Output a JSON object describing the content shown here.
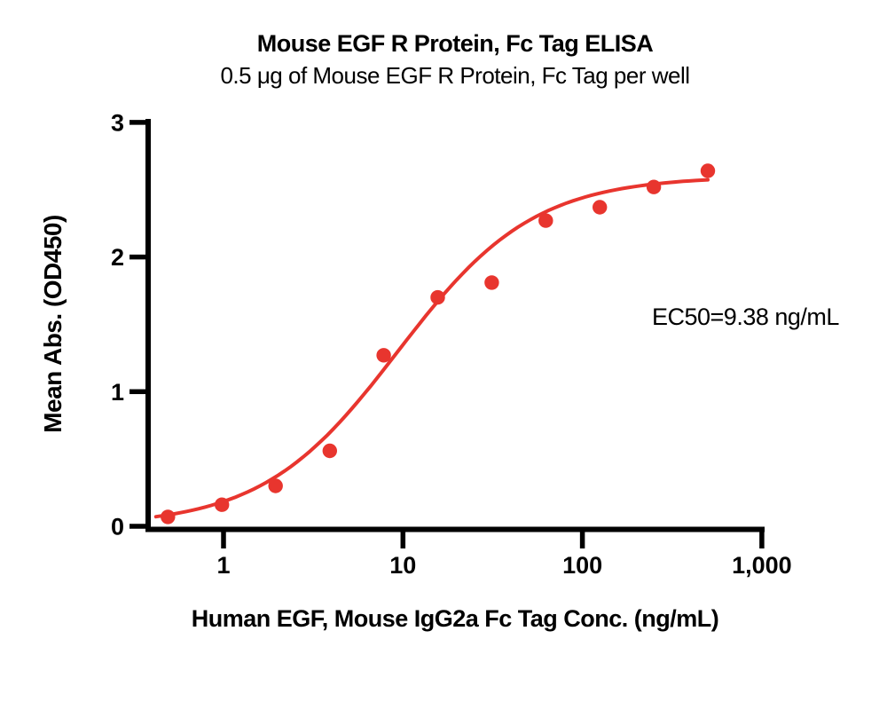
{
  "chart_data": {
    "type": "scatter",
    "title": "Mouse EGF R Protein, Fc Tag ELISA",
    "subtitle": "0.5 μg of Mouse EGF R Protein, Fc Tag per well",
    "xlabel": "Human EGF, Mouse IgG2a Fc Tag Conc. (ng/mL)",
    "ylabel": "Mean Abs. (OD450)",
    "annotation": "EC50=9.38 ng/mL",
    "x_scale": "log10",
    "xlim": [
      0.39,
      1000
    ],
    "ylim": [
      0,
      3
    ],
    "x_ticks": [
      1,
      10,
      100,
      1000
    ],
    "x_tick_labels": [
      "1",
      "10",
      "100",
      "1,000"
    ],
    "y_ticks": [
      0,
      1,
      2,
      3
    ],
    "y_tick_labels": [
      "0",
      "1",
      "2",
      "3"
    ],
    "grid": false,
    "legend": "none",
    "points": {
      "x": [
        0.49,
        0.98,
        1.95,
        3.91,
        7.81,
        15.63,
        31.25,
        62.5,
        125,
        250,
        500
      ],
      "y": [
        0.07,
        0.16,
        0.3,
        0.56,
        1.27,
        1.7,
        1.81,
        2.27,
        2.37,
        2.52,
        2.64
      ]
    },
    "curve_fit": {
      "model": "4PL",
      "bottom": 0,
      "top": 2.6,
      "ec50": 9.38,
      "hill": 1.15,
      "x_start": 0.42,
      "x_end": 500
    },
    "colors": {
      "series": "#E8352E",
      "axis": "#000000",
      "text": "#000000",
      "background": "#FFFFFF"
    }
  }
}
